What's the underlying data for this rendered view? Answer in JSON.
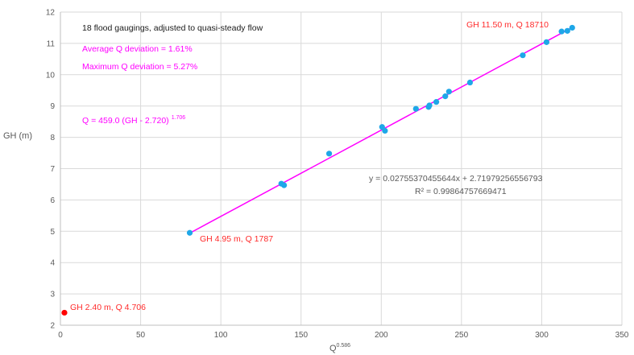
{
  "chart_data": {
    "type": "scatter",
    "title": "",
    "xlabel": "Q",
    "xlabel_exponent": "0.586",
    "ylabel": "GH (m)",
    "xlim": [
      0,
      350
    ],
    "ylim": [
      2,
      12
    ],
    "x_ticks": [
      "0",
      "50",
      "100",
      "150",
      "200",
      "250",
      "300",
      "350"
    ],
    "y_ticks": [
      "2",
      "3",
      "4",
      "5",
      "6",
      "7",
      "8",
      "9",
      "10",
      "11",
      "12"
    ],
    "grid": true,
    "colors": {
      "points": "#1ea7e8",
      "trend": "#ff00ff",
      "extreme": "#ff0000",
      "red_text": "#ff2a2a",
      "black_text": "#1a1a1a",
      "gray_text": "#595959",
      "grid": "#d9d9d9"
    },
    "series": [
      {
        "values": [
          [
            80.6,
            4.95
          ],
          [
            137.7,
            6.52
          ],
          [
            139.4,
            6.47
          ],
          [
            167.5,
            7.48
          ],
          [
            200.5,
            8.33
          ],
          [
            202.3,
            8.21
          ],
          [
            221.6,
            8.91
          ],
          [
            229.5,
            8.97
          ],
          [
            230.0,
            9.02
          ],
          [
            234.3,
            9.13
          ],
          [
            239.9,
            9.31
          ],
          [
            242.2,
            9.46
          ],
          [
            255.3,
            9.75
          ],
          [
            288.2,
            10.62
          ],
          [
            303.0,
            11.04
          ],
          [
            312.4,
            11.38
          ],
          [
            316.0,
            11.4
          ],
          [
            319.0,
            11.5
          ]
        ]
      },
      {
        "values": [
          [
            2.49,
            2.4
          ]
        ]
      }
    ],
    "trendline": {
      "slope": 0.02755370455644,
      "intercept": 2.71979256556793,
      "x_range": [
        80.6,
        319.0
      ]
    },
    "annotations": {
      "title_note": "18 flood gaugings, adjusted to quasi-steady flow",
      "avg_dev": "Average Q deviation = 1.61%",
      "max_dev": "Maximum Q deviation = 5.27%",
      "formula_base": "Q = 459.0 (GH - 2.720)",
      "formula_exponent": "1.706",
      "eq_line": "y = 0.02755370455644x  + 2.71979256556793",
      "r2_line": "R² = 0.99864757669471",
      "label_top": "GH 11.50 m, Q 18710",
      "label_mid": "GH 4.95 m, Q 1787",
      "label_low": "GH 2.40 m, Q 4.706"
    }
  }
}
